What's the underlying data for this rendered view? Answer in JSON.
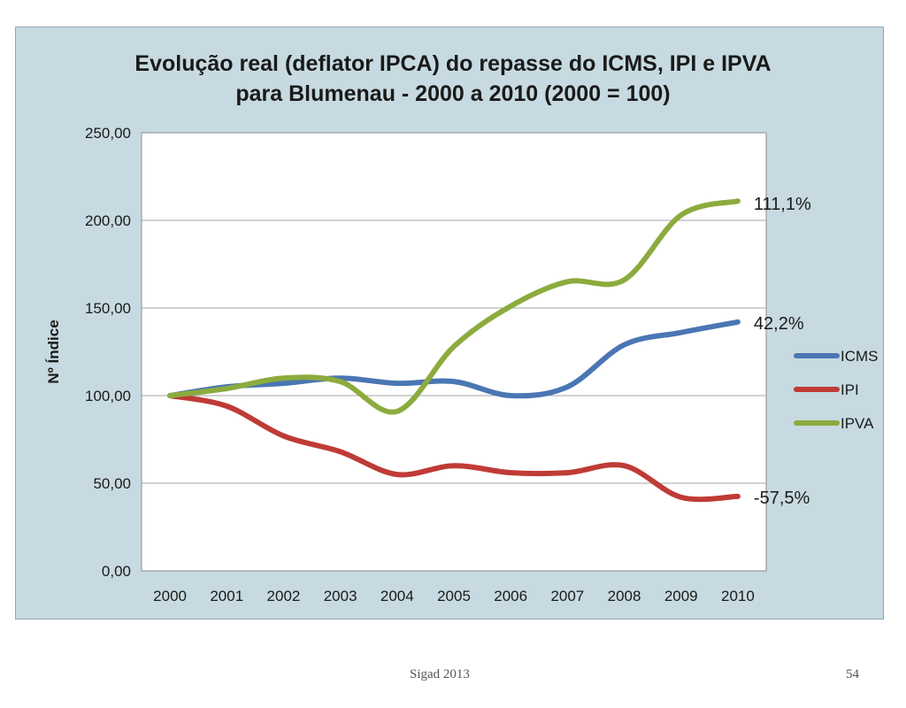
{
  "footer": {
    "source": "Sigad 2013",
    "page_number": "54"
  },
  "colors": {
    "frame_background": "#c7dae1",
    "plot_background": "#ffffff",
    "gridline": "#a6a6a6",
    "ICMS": "#4a76b3",
    "IPI": "#bf3b36",
    "IPVA": "#8cab3e"
  },
  "chart_data": {
    "type": "line",
    "title": "Evolução real (deflator IPCA) do repasse do ICMS, IPI e IPVA",
    "subtitle": "para Blumenau - 2000 a 2010 (2000 = 100)",
    "xlabel": "",
    "ylabel": "Nº Índice",
    "ylim": [
      0,
      250
    ],
    "y_ticks": [
      "0,00",
      "50,00",
      "100,00",
      "150,00",
      "200,00",
      "250,00"
    ],
    "categories": [
      "2000",
      "2001",
      "2002",
      "2003",
      "2004",
      "2005",
      "2006",
      "2007",
      "2008",
      "2009",
      "2010"
    ],
    "grid": "horizontal",
    "legend_position": "right",
    "series": [
      {
        "name": "ICMS",
        "color": "#4a76b3",
        "values": [
          100,
          105,
          107,
          110,
          107,
          108,
          100,
          105,
          129,
          136,
          142
        ],
        "end_label": "42,2%"
      },
      {
        "name": "IPI",
        "color": "#bf3b36",
        "values": [
          100,
          94,
          77,
          68,
          55,
          60,
          56,
          56,
          60,
          42,
          42.5
        ],
        "end_label": "-57,5%"
      },
      {
        "name": "IPVA",
        "color": "#8cab3e",
        "values": [
          100,
          104,
          110,
          108,
          91,
          128,
          151,
          165,
          166,
          203,
          211
        ],
        "end_label": "111,1%"
      }
    ]
  }
}
